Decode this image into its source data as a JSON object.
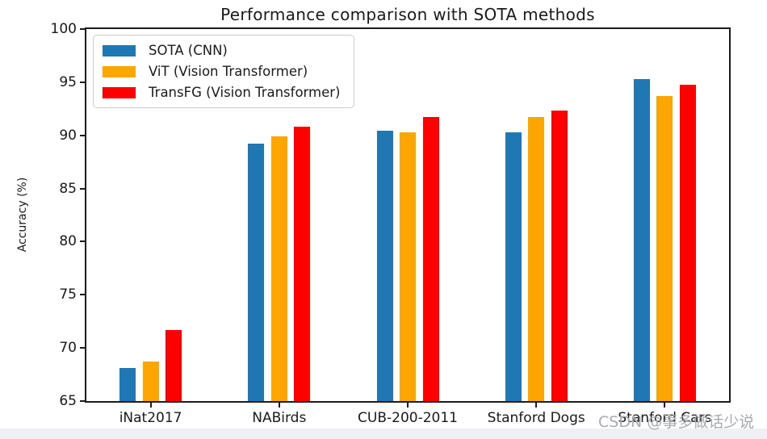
{
  "watermark": "CSDN @事多做话少说",
  "chart_data": {
    "type": "bar",
    "title": "Performance comparison with SOTA methods",
    "xlabel": "",
    "ylabel": "Accuracy (%)",
    "ylim": [
      65,
      100
    ],
    "yticks": [
      65,
      70,
      75,
      80,
      85,
      90,
      95,
      100
    ],
    "grid": false,
    "legend_position": "upper left",
    "categories": [
      "iNat2017",
      "NABirds",
      "CUB-200-2011",
      "Stanford Dogs",
      "Stanford Cars"
    ],
    "series": [
      {
        "name": "SOTA (CNN)",
        "color": "#1f77b4",
        "values": [
          68.1,
          89.2,
          90.4,
          90.3,
          95.3
        ]
      },
      {
        "name": "ViT (Vision Transformer)",
        "color": "#ffa500",
        "values": [
          68.7,
          89.9,
          90.3,
          91.7,
          93.7
        ]
      },
      {
        "name": "TransFG (Vision Transformer)",
        "color": "#ff0000",
        "values": [
          71.7,
          90.8,
          91.7,
          92.3,
          94.8
        ]
      }
    ]
  }
}
